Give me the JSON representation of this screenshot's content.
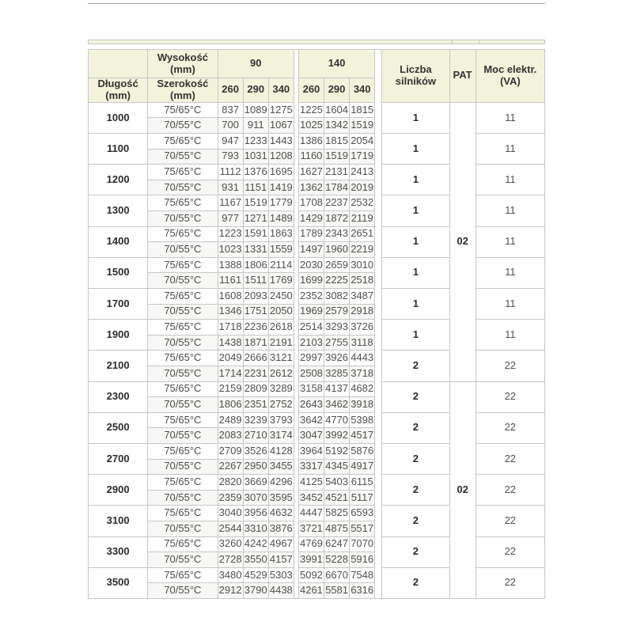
{
  "colors": {
    "header_bg": "#f3f3dc",
    "border": "#c6c6c6",
    "stripe_bg": "#f7f7f5",
    "header_text": "#333333",
    "value_text": "#4f4f4f"
  },
  "chart_data": {
    "type": "table",
    "header": {
      "wysokosc": "Wysokość (mm)",
      "dlugosc": "Długość (mm)",
      "szerokosc": "Szerokość (mm)",
      "height_groups": [
        "90",
        "140"
      ],
      "width_cols": [
        "260",
        "290",
        "340",
        "260",
        "290",
        "340"
      ],
      "liczba": "Liczba silników",
      "pat": "PAT",
      "moc": "Moc elektr. (VA)"
    },
    "temp_labels": [
      "75/65°C",
      "70/55°C"
    ],
    "pat_cells": [
      {
        "value": "02",
        "groups_spanned": 9
      },
      {
        "value": "02",
        "groups_spanned": 7
      }
    ],
    "groups": [
      {
        "length": "1000",
        "motors": "1",
        "power_va": "11",
        "rows": [
          [
            837,
            1089,
            1275,
            1225,
            1604,
            1815
          ],
          [
            700,
            911,
            1067,
            1025,
            1342,
            1519
          ]
        ]
      },
      {
        "length": "1100",
        "motors": "1",
        "power_va": "11",
        "rows": [
          [
            947,
            1233,
            1443,
            1386,
            1815,
            2054
          ],
          [
            793,
            1031,
            1208,
            1160,
            1519,
            1719
          ]
        ]
      },
      {
        "length": "1200",
        "motors": "1",
        "power_va": "11",
        "rows": [
          [
            1112,
            1376,
            1695,
            1627,
            2131,
            2413
          ],
          [
            931,
            1151,
            1419,
            1362,
            1784,
            2019
          ]
        ]
      },
      {
        "length": "1300",
        "motors": "1",
        "power_va": "11",
        "rows": [
          [
            1167,
            1519,
            1779,
            1708,
            2237,
            2532
          ],
          [
            977,
            1271,
            1489,
            1429,
            1872,
            2119
          ]
        ]
      },
      {
        "length": "1400",
        "motors": "1",
        "power_va": "11",
        "rows": [
          [
            1223,
            1591,
            1863,
            1789,
            2343,
            2651
          ],
          [
            1023,
            1331,
            1559,
            1497,
            1960,
            2219
          ]
        ]
      },
      {
        "length": "1500",
        "motors": "1",
        "power_va": "11",
        "rows": [
          [
            1388,
            1806,
            2114,
            2030,
            2659,
            3010
          ],
          [
            1161,
            1511,
            1769,
            1699,
            2225,
            2518
          ]
        ]
      },
      {
        "length": "1700",
        "motors": "1",
        "power_va": "11",
        "rows": [
          [
            1608,
            2093,
            2450,
            2352,
            3082,
            3487
          ],
          [
            1346,
            1751,
            2050,
            1969,
            2579,
            2918
          ]
        ]
      },
      {
        "length": "1900",
        "motors": "1",
        "power_va": "11",
        "rows": [
          [
            1718,
            2236,
            2618,
            2514,
            3293,
            3726
          ],
          [
            1438,
            1871,
            2191,
            2103,
            2755,
            3118
          ]
        ]
      },
      {
        "length": "2100",
        "motors": "2",
        "power_va": "22",
        "rows": [
          [
            2049,
            2666,
            3121,
            2997,
            3926,
            4443
          ],
          [
            1714,
            2231,
            2612,
            2508,
            3285,
            3718
          ]
        ]
      },
      {
        "length": "2300",
        "motors": "2",
        "power_va": "22",
        "rows": [
          [
            2159,
            2809,
            3289,
            3158,
            4137,
            4682
          ],
          [
            1806,
            2351,
            2752,
            2643,
            3462,
            3918
          ]
        ]
      },
      {
        "length": "2500",
        "motors": "2",
        "power_va": "22",
        "rows": [
          [
            2489,
            3239,
            3793,
            3642,
            4770,
            5398
          ],
          [
            2083,
            2710,
            3174,
            3047,
            3992,
            4517
          ]
        ]
      },
      {
        "length": "2700",
        "motors": "2",
        "power_va": "22",
        "rows": [
          [
            2709,
            3526,
            4128,
            3964,
            5192,
            5876
          ],
          [
            2267,
            2950,
            3455,
            3317,
            4345,
            4917
          ]
        ]
      },
      {
        "length": "2900",
        "motors": "2",
        "power_va": "22",
        "rows": [
          [
            2820,
            3669,
            4296,
            4125,
            5403,
            6115
          ],
          [
            2359,
            3070,
            3595,
            3452,
            4521,
            5117
          ]
        ]
      },
      {
        "length": "3100",
        "motors": "2",
        "power_va": "22",
        "rows": [
          [
            3040,
            3956,
            4632,
            4447,
            5825,
            6593
          ],
          [
            2544,
            3310,
            3876,
            3721,
            4875,
            5517
          ]
        ]
      },
      {
        "length": "3300",
        "motors": "2",
        "power_va": "22",
        "rows": [
          [
            3260,
            4242,
            4967,
            4769,
            6247,
            7070
          ],
          [
            2728,
            3550,
            4157,
            3991,
            5228,
            5916
          ]
        ]
      },
      {
        "length": "3500",
        "motors": "2",
        "power_va": "22",
        "rows": [
          [
            3480,
            4529,
            5303,
            5092,
            6670,
            7548
          ],
          [
            2912,
            3790,
            4438,
            4261,
            5581,
            6316
          ]
        ]
      }
    ]
  }
}
